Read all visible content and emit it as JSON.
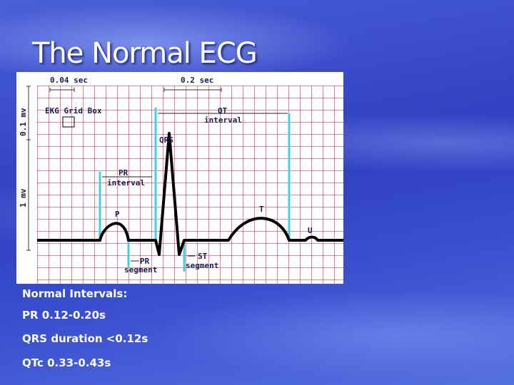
{
  "header": {
    "title": "The Normal ECG"
  },
  "diagram": {
    "labels": {
      "small_time": "0.04 sec",
      "large_time": "0.2 sec",
      "small_voltage": "0.1 mv",
      "large_voltage": "1 mv",
      "grid_box": "EKG Grid Box",
      "qt": "QT",
      "qt_sub": "interval",
      "qrs": "QRS",
      "pr": "PR",
      "pr_sub": "interval",
      "p": "P",
      "t": "T",
      "u": "U",
      "pr_segment": "PR",
      "pr_segment_sub": "segment",
      "st_segment": "ST",
      "st_segment_sub": "segment"
    }
  },
  "notes": {
    "heading": "Normal Intervals:",
    "items": [
      "PR 0.12-0.20s",
      "QRS duration <0.12s",
      "QTc 0.33-0.43s"
    ]
  }
}
